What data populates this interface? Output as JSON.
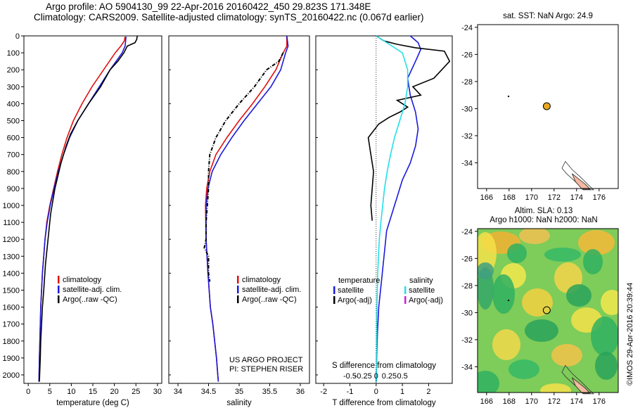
{
  "title": {
    "line1": "Argo profile: AO 5904130_99 22-Apr-2016 20160422_450 29.823S 171.348E",
    "line2": "Climatology: CARS2009. Satellite-adjusted climatology: synTS_20160422.nc (0.067d earlier)"
  },
  "credit": "©IMOS 29-Apr-2016 20:39:44",
  "colors": {
    "climatology": "#e01010",
    "satellite": "#1a1adb",
    "argo": "#000000",
    "sat_salinity": "#22e0e8",
    "argo_adj_salinity": "#d020d0",
    "argo_marker": "#e8a820"
  },
  "chart_data": [
    {
      "type": "line",
      "xlabel": "temperature (deg C)",
      "ylabel": "",
      "xlim": [
        -1,
        31
      ],
      "ylim": [
        2050,
        0
      ],
      "xticks": [
        "0",
        "5",
        "10",
        "15",
        "20",
        "25",
        "30"
      ],
      "yticks": [
        "0",
        "100",
        "200",
        "300",
        "400",
        "500",
        "600",
        "700",
        "800",
        "900",
        "1000",
        "1100",
        "1200",
        "1300",
        "1400",
        "1500",
        "1600",
        "1700",
        "1800",
        "1900",
        "2000"
      ],
      "legend": [
        "climatology",
        "satellite-adj. clim.",
        "Argo(..raw -QC)"
      ],
      "series": [
        {
          "name": "climatology",
          "x": [
            22.5,
            22.3,
            21.5,
            20.2,
            17.5,
            14.8,
            12.5,
            10.5,
            9.0,
            7.8,
            6.8,
            5.9,
            5.0,
            4.3,
            3.9,
            3.6,
            3.3,
            3.1,
            2.9,
            2.8,
            2.7,
            2.6,
            2.5
          ],
          "y": [
            5,
            30,
            60,
            100,
            200,
            300,
            400,
            500,
            600,
            700,
            800,
            900,
            1000,
            1100,
            1200,
            1300,
            1400,
            1500,
            1600,
            1700,
            1800,
            1900,
            2040
          ]
        },
        {
          "name": "satellite-adj. clim.",
          "x": [
            22.7,
            22.6,
            22.5,
            21.8,
            19.0,
            16.5,
            14.0,
            11.5,
            9.6,
            8.2,
            7.0,
            6.0,
            5.1,
            4.4,
            3.9,
            3.6,
            3.3,
            3.1,
            2.9,
            2.8,
            2.7,
            2.6,
            2.5
          ],
          "y": [
            5,
            30,
            60,
            100,
            200,
            300,
            400,
            500,
            600,
            700,
            800,
            900,
            1000,
            1100,
            1200,
            1300,
            1400,
            1500,
            1600,
            1700,
            1800,
            1900,
            2040
          ]
        },
        {
          "name": "Argo(..raw -QC)",
          "x": [
            25.3,
            25.2,
            24.8,
            23.0,
            22.2,
            20.8,
            19.0,
            16.8,
            14.0,
            11.5,
            9.8,
            8.8,
            7.6,
            6.2,
            5.2,
            4.6,
            4.0,
            3.6,
            3.3,
            3.1,
            2.9,
            2.8,
            2.6
          ],
          "y": [
            0,
            20,
            40,
            60,
            100,
            150,
            200,
            300,
            400,
            500,
            580,
            650,
            750,
            900,
            1050,
            1200,
            1350,
            1500,
            1600,
            1700,
            1800,
            1900,
            2040
          ]
        }
      ]
    },
    {
      "type": "line",
      "xlabel": "salinity",
      "ylabel": "",
      "xlim": [
        33.85,
        36.15
      ],
      "ylim": [
        2050,
        0
      ],
      "xticks": [
        "34",
        "34.5",
        "35",
        "35.5",
        "36"
      ],
      "legend": [
        "climatology",
        "satellite-adj. clim.",
        "Argo(..raw -QC)"
      ],
      "annotations": [
        "US ARGO PROJECT",
        "PI: STEPHEN RISER"
      ],
      "series": [
        {
          "name": "climatology",
          "x": [
            35.78,
            35.78,
            35.72,
            35.6,
            35.42,
            35.22,
            35.0,
            34.8,
            34.62,
            34.52,
            34.47,
            34.45,
            34.46,
            34.49,
            34.53,
            34.57,
            34.6,
            34.63,
            34.66
          ],
          "y": [
            0,
            60,
            100,
            200,
            300,
            400,
            500,
            600,
            700,
            800,
            900,
            1000,
            1200,
            1400,
            1600,
            1700,
            1800,
            1900,
            2040
          ]
        },
        {
          "name": "satellite-adj. clim.",
          "x": [
            35.78,
            35.8,
            35.76,
            35.68,
            35.52,
            35.3,
            35.08,
            34.88,
            34.7,
            34.56,
            34.49,
            34.46,
            34.46,
            34.49,
            34.53,
            34.57,
            34.6,
            34.63,
            34.66
          ],
          "y": [
            0,
            60,
            100,
            200,
            300,
            400,
            500,
            600,
            700,
            800,
            900,
            1000,
            1200,
            1400,
            1600,
            1700,
            1800,
            1900,
            2040
          ]
        },
        {
          "name": "Argo(..raw -QC)",
          "x": [
            35.72,
            35.65,
            35.45,
            35.25,
            35.0,
            34.78,
            34.62,
            34.52,
            34.5,
            34.5,
            34.48,
            34.46,
            34.46,
            34.43,
            34.5,
            34.5,
            34.52
          ],
          "y": [
            100,
            150,
            200,
            300,
            400,
            500,
            600,
            700,
            800,
            900,
            1000,
            1100,
            1200,
            1250,
            1300,
            1400,
            1450
          ]
        }
      ]
    },
    {
      "type": "line",
      "xlabel": "T difference from climatology",
      "x2label": "S difference from climatology",
      "xlim": [
        -2.3,
        2.9
      ],
      "ylim": [
        2050,
        0
      ],
      "xticks": [
        "-2",
        "-1",
        "0",
        "1",
        "2"
      ],
      "x2ticks": [
        "-0.5",
        "-0.25",
        "0",
        "0.25",
        "0.5"
      ],
      "legend": [
        {
          "header": "temperature",
          "items": [
            "satellite",
            "Argo(-adj)"
          ]
        },
        {
          "header": "salinity",
          "items": [
            "satellite",
            "Argo(-adj)"
          ]
        }
      ],
      "series": [
        {
          "name": "temperature satellite",
          "x": [
            1.3,
            1.6,
            1.7,
            1.5,
            1.2,
            1.3,
            1.5,
            1.6,
            1.5,
            1.3,
            1.0,
            0.8,
            0.6,
            0.4,
            0.3,
            0.2,
            0.1,
            0.05,
            0.02,
            0.0
          ],
          "y": [
            0,
            40,
            80,
            150,
            250,
            350,
            450,
            550,
            650,
            750,
            850,
            950,
            1050,
            1150,
            1300,
            1450,
            1600,
            1750,
            1900,
            2040
          ]
        },
        {
          "name": "temperature Argo(-adj)",
          "x": [
            0.0,
            0.3,
            0.8,
            1.5,
            2.6,
            2.8,
            2.2,
            1.4,
            1.7,
            0.8,
            1.2,
            0.9,
            0.5,
            0.1,
            -0.3,
            -0.2,
            -0.1,
            -0.15,
            -0.2,
            -0.15
          ],
          "y": [
            0,
            30,
            50,
            70,
            90,
            150,
            250,
            300,
            350,
            380,
            420,
            450,
            480,
            520,
            600,
            700,
            800,
            900,
            1000,
            1090
          ]
        },
        {
          "name": "salinity satellite",
          "x": [
            0.0,
            0.5,
            1.0,
            1.2,
            1.2,
            1.1,
            0.9,
            0.7,
            0.55,
            0.42,
            0.32,
            0.25,
            0.18,
            0.12,
            0.06,
            0.03,
            0.01
          ],
          "y": [
            0,
            50,
            100,
            200,
            300,
            400,
            500,
            600,
            700,
            800,
            900,
            1000,
            1100,
            1200,
            1400,
            1600,
            2040
          ]
        },
        {
          "name": "salinity Argo(-adj)",
          "x": [],
          "y": []
        }
      ]
    }
  ],
  "maps": {
    "sst": {
      "title": "sat. SST: NaN Argo: 24.9",
      "xticks": [
        "166",
        "168",
        "170",
        "172",
        "174",
        "176"
      ],
      "yticks": [
        "-24",
        "-26",
        "-28",
        "-30",
        "-32",
        "-34"
      ],
      "lon_range": [
        165.2,
        177.7
      ],
      "lat_range": [
        -35.9,
        -23.8
      ],
      "argo_position": [
        171.348,
        -29.823
      ],
      "small_marker": [
        167.95,
        -29.1
      ]
    },
    "sla": {
      "title_line1": "Altim. SLA: 0.13",
      "title_line2": "Argo h1000: NaN h2000: NaN",
      "xticks": [
        "166",
        "168",
        "170",
        "172",
        "174",
        "176"
      ],
      "yticks": [
        "-24",
        "-26",
        "-28",
        "-30",
        "-32",
        "-34"
      ],
      "lon_range": [
        165.2,
        177.7
      ],
      "lat_range": [
        -35.9,
        -23.8
      ],
      "argo_position": [
        171.348,
        -29.823
      ],
      "small_marker": [
        167.95,
        -29.1
      ]
    }
  }
}
